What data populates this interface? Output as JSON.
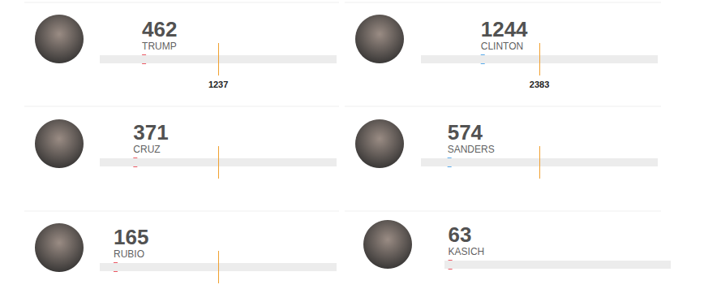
{
  "chart_data": [
    {
      "type": "scatter",
      "orientation": "horizontal",
      "marker": "rect",
      "title": "TRUMP",
      "values": [
        462
      ],
      "color": "#e8313f",
      "xlim": [
        0,
        2472
      ],
      "target": 1237,
      "target_label": "1237",
      "data_labels": true,
      "tick_labels": false
    },
    {
      "type": "scatter",
      "orientation": "horizontal",
      "marker": "rect",
      "title": "CRUZ",
      "values": [
        371
      ],
      "color": "#e8313f",
      "xlim": [
        0,
        2472
      ],
      "target": 1237,
      "data_labels": true,
      "tick_labels": false
    },
    {
      "type": "scatter",
      "orientation": "horizontal",
      "marker": "rect",
      "title": "RUBIO",
      "values": [
        165
      ],
      "color": "#e8313f",
      "xlim": [
        0,
        2472
      ],
      "target": 1237,
      "data_labels": true,
      "tick_labels": false
    },
    {
      "type": "scatter",
      "orientation": "horizontal",
      "marker": "rect",
      "title": "CLINTON",
      "values": [
        1244
      ],
      "color": "#2e96e6",
      "xlim": [
        0,
        4765
      ],
      "target": 2383,
      "target_label": "2383",
      "data_labels": true,
      "tick_labels": false
    },
    {
      "type": "scatter",
      "orientation": "horizontal",
      "marker": "rect",
      "title": "SANDERS",
      "values": [
        574
      ],
      "color": "#2e96e6",
      "xlim": [
        0,
        4765
      ],
      "target": 2383,
      "data_labels": true,
      "tick_labels": false
    },
    {
      "type": "scatter",
      "orientation": "horizontal",
      "marker": "rect",
      "title": "KASICH",
      "values": [
        63
      ],
      "color": "#e8313f",
      "xlim": [
        0,
        2472
      ],
      "data_labels": true,
      "tick_labels": false
    }
  ]
}
